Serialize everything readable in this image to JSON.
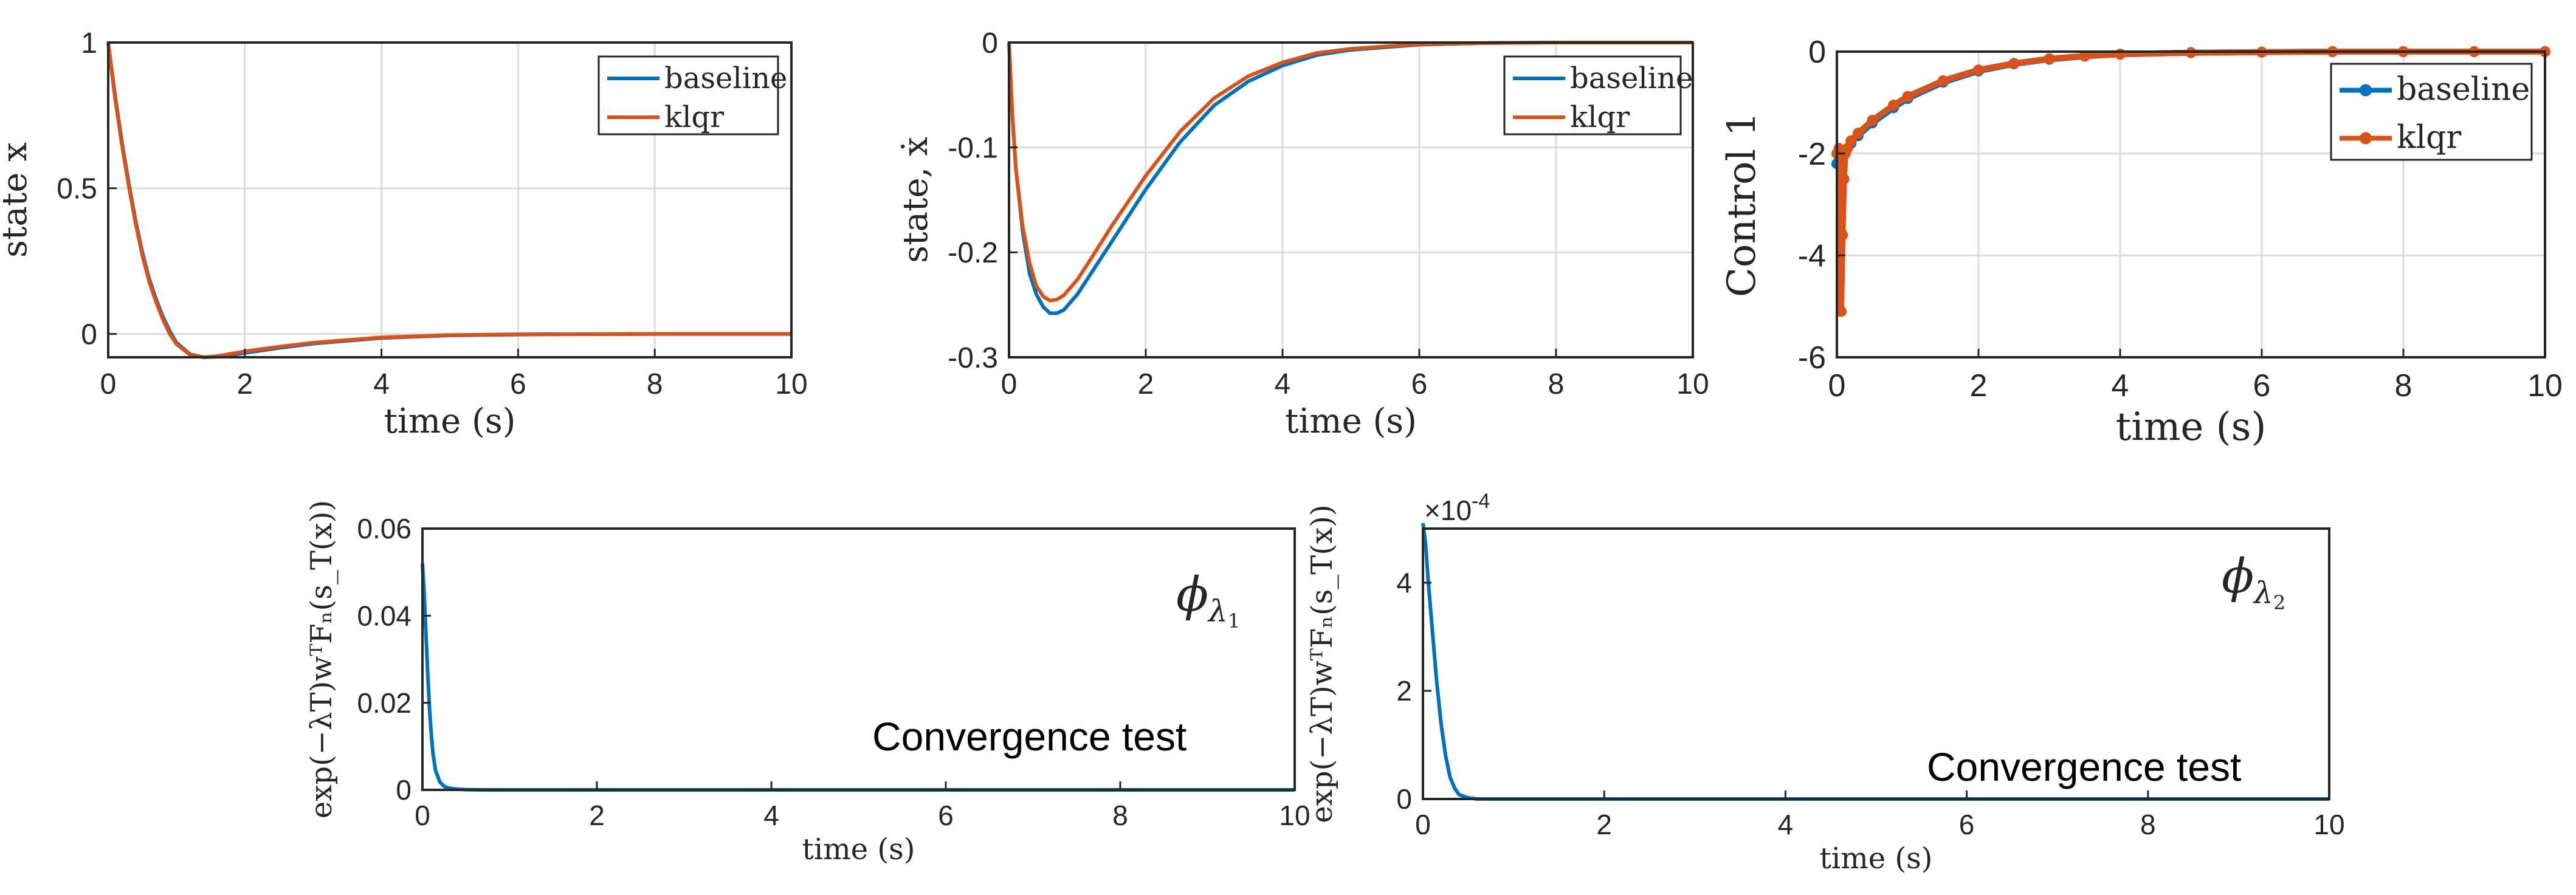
{
  "colors": {
    "baseline": "#0072BD",
    "klqr": "#D95319",
    "grid": "#dcdcdc",
    "axes": "#262626"
  },
  "chart_data": [
    {
      "type": "line",
      "xlabel": "time (s)",
      "ylabel": "state x",
      "xlim": [
        0,
        10
      ],
      "ylim": [
        -0.08,
        1
      ],
      "xticks": [
        "0",
        "2",
        "4",
        "6",
        "8",
        "10"
      ],
      "yticks": [
        "0",
        "0.5",
        "1"
      ],
      "grid": true,
      "legend": "top-right",
      "series": [
        {
          "name": "baseline",
          "x": [
            0,
            0.1,
            0.2,
            0.3,
            0.4,
            0.5,
            0.6,
            0.7,
            0.8,
            0.9,
            1,
            1.2,
            1.4,
            1.6,
            1.8,
            2,
            2.5,
            3,
            4,
            5,
            6,
            8,
            10
          ],
          "y": [
            1,
            0.82,
            0.66,
            0.52,
            0.39,
            0.28,
            0.19,
            0.12,
            0.06,
            0.01,
            -0.03,
            -0.07,
            -0.08,
            -0.078,
            -0.072,
            -0.065,
            -0.048,
            -0.033,
            -0.014,
            -0.005,
            -0.002,
            0,
            0
          ]
        },
        {
          "name": "klqr",
          "x": [
            0,
            0.1,
            0.2,
            0.3,
            0.4,
            0.5,
            0.6,
            0.7,
            0.8,
            0.9,
            1,
            1.2,
            1.4,
            1.6,
            1.8,
            2,
            2.5,
            3,
            4,
            5,
            6,
            8,
            10
          ],
          "y": [
            1,
            0.81,
            0.65,
            0.51,
            0.38,
            0.27,
            0.18,
            0.11,
            0.05,
            0.0,
            -0.035,
            -0.072,
            -0.08,
            -0.076,
            -0.068,
            -0.06,
            -0.044,
            -0.03,
            -0.012,
            -0.004,
            -0.001,
            0,
            0
          ]
        }
      ]
    },
    {
      "type": "line",
      "xlabel": "time (s)",
      "ylabel": "state, ẋ",
      "xlim": [
        0,
        10
      ],
      "ylim": [
        -0.3,
        0
      ],
      "xticks": [
        "0",
        "2",
        "4",
        "6",
        "8",
        "10"
      ],
      "yticks": [
        "-0.3",
        "-0.2",
        "-0.1",
        "0"
      ],
      "grid": true,
      "legend": "top-right",
      "series": [
        {
          "name": "baseline",
          "x": [
            0,
            0.05,
            0.1,
            0.2,
            0.3,
            0.4,
            0.5,
            0.6,
            0.7,
            0.8,
            1,
            1.2,
            1.5,
            2,
            2.5,
            3,
            3.5,
            4,
            4.5,
            5,
            6,
            7,
            8,
            10
          ],
          "y": [
            0,
            -0.07,
            -0.12,
            -0.18,
            -0.22,
            -0.24,
            -0.252,
            -0.258,
            -0.258,
            -0.255,
            -0.24,
            -0.22,
            -0.19,
            -0.14,
            -0.095,
            -0.06,
            -0.037,
            -0.022,
            -0.012,
            -0.007,
            -0.002,
            -0.0005,
            0,
            0
          ]
        },
        {
          "name": "klqr",
          "x": [
            0,
            0.05,
            0.1,
            0.2,
            0.3,
            0.4,
            0.5,
            0.6,
            0.7,
            0.8,
            1,
            1.2,
            1.5,
            2,
            2.5,
            3,
            3.5,
            4,
            4.5,
            5,
            6,
            7,
            8,
            10
          ],
          "y": [
            0,
            -0.07,
            -0.12,
            -0.175,
            -0.21,
            -0.232,
            -0.242,
            -0.246,
            -0.245,
            -0.241,
            -0.226,
            -0.206,
            -0.175,
            -0.127,
            -0.085,
            -0.053,
            -0.032,
            -0.019,
            -0.01,
            -0.006,
            -0.0015,
            -0.0004,
            0,
            0
          ]
        }
      ]
    },
    {
      "type": "line",
      "xlabel": "time (s)",
      "ylabel": "Control 1",
      "xlim": [
        0,
        10
      ],
      "ylim": [
        -6,
        0
      ],
      "xticks": [
        "0",
        "2",
        "4",
        "6",
        "8",
        "10"
      ],
      "yticks": [
        "-6",
        "-4",
        "-2",
        "0"
      ],
      "grid": true,
      "legend": "top-right",
      "markers": true,
      "series": [
        {
          "name": "baseline",
          "x": [
            0,
            0.03,
            0.06,
            0.1,
            0.2,
            0.3,
            0.5,
            0.8,
            1,
            1.5,
            2,
            2.5,
            3,
            3.5,
            4,
            5,
            6,
            7,
            8,
            9,
            10
          ],
          "y": [
            -2.2,
            -2.15,
            -2.05,
            -1.95,
            -1.8,
            -1.65,
            -1.4,
            -1.1,
            -0.92,
            -0.6,
            -0.38,
            -0.24,
            -0.15,
            -0.09,
            -0.05,
            -0.02,
            -0.01,
            0,
            0,
            0,
            0
          ]
        },
        {
          "name": "klqr",
          "x": [
            0,
            0.03,
            0.06,
            0.08,
            0.1,
            0.12,
            0.15,
            0.2,
            0.3,
            0.5,
            0.8,
            1,
            1.5,
            2,
            2.5,
            3,
            3.5,
            4,
            5,
            6,
            7,
            8,
            9,
            10
          ],
          "y": [
            -2.0,
            -1.9,
            -5.1,
            -3.6,
            -2.5,
            -2.0,
            -1.9,
            -1.75,
            -1.6,
            -1.35,
            -1.05,
            -0.88,
            -0.57,
            -0.36,
            -0.23,
            -0.14,
            -0.085,
            -0.05,
            -0.02,
            -0.01,
            0,
            0,
            0,
            0
          ]
        }
      ]
    },
    {
      "type": "line",
      "xlabel": "time (s)",
      "ylabel": "exp(−λT)wᵀFₙ(s_T(x))",
      "xlim": [
        0,
        10
      ],
      "ylim": [
        0,
        0.06
      ],
      "xticks": [
        "0",
        "2",
        "4",
        "6",
        "8",
        "10"
      ],
      "yticks": [
        "0",
        "0.02",
        "0.04",
        "0.06"
      ],
      "grid": false,
      "annotations": {
        "symbol_base": "ϕ",
        "symbol_sub": "λ",
        "symbol_subsub": "1",
        "text": "Convergence test"
      },
      "series": [
        {
          "x": [
            0,
            0.02,
            0.04,
            0.06,
            0.08,
            0.1,
            0.12,
            0.15,
            0.2,
            0.25,
            0.3,
            0.4,
            0.5,
            0.7,
            1,
            2,
            5,
            10
          ],
          "y": [
            0.052,
            0.045,
            0.036,
            0.027,
            0.019,
            0.013,
            0.0085,
            0.0045,
            0.0018,
            0.0008,
            0.0004,
            0.00015,
            5e-05,
            0,
            0,
            0,
            0,
            0
          ]
        }
      ]
    },
    {
      "type": "line",
      "xlabel": "time (s)",
      "ylabel": "exp(−λT)wᵀFₙ(s_T(x))",
      "xlim": [
        0,
        10
      ],
      "ylim": [
        0,
        0.0005
      ],
      "scale_label": "×10-4",
      "xticks": [
        "0",
        "2",
        "4",
        "6",
        "8",
        "10"
      ],
      "yticks": [
        "0",
        "2",
        "4"
      ],
      "grid": false,
      "annotations": {
        "symbol_base": "ϕ",
        "symbol_sub": "λ",
        "symbol_subsub": "2",
        "text": "Convergence test"
      },
      "series": [
        {
          "x": [
            0,
            0.03,
            0.06,
            0.1,
            0.15,
            0.2,
            0.25,
            0.3,
            0.35,
            0.4,
            0.5,
            0.6,
            0.8,
            1,
            2,
            5,
            10
          ],
          "y": [
            0.00051,
            0.00047,
            0.0004,
            0.00032,
            0.00022,
            0.00014,
            8e-05,
            4e-05,
            2e-05,
            8e-06,
            2e-06,
            0,
            0,
            0,
            0,
            0,
            0
          ]
        }
      ]
    }
  ]
}
